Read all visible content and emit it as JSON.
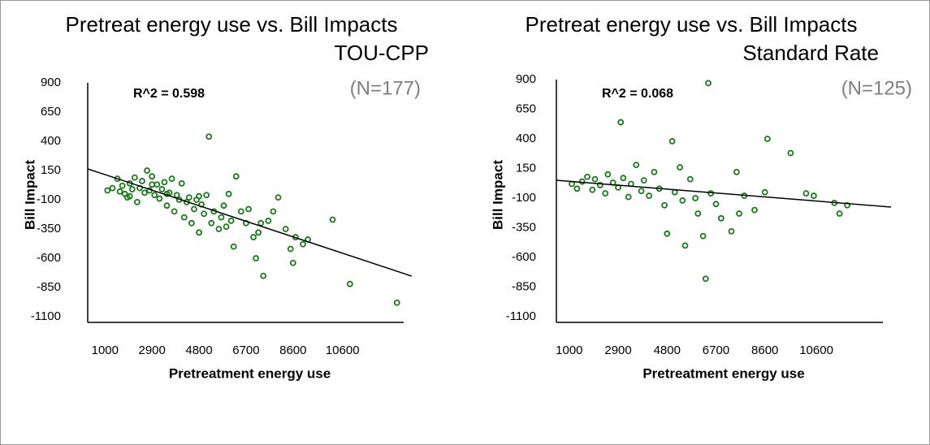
{
  "chart_data": [
    {
      "type": "scatter",
      "title": "Pretreat energy use vs. Bill Impacts",
      "subtitle": "TOU-CPP",
      "annotations": [
        "R^2 = 0.598",
        "(N=177)"
      ],
      "x_label": "Pretreatment energy use",
      "y_label": "Bill Impact",
      "color": "#1a7a1a",
      "xlim": [
        300,
        13400
      ],
      "ylim": [
        -1100,
        900
      ],
      "xticks": [
        1000,
        2900,
        4800,
        6700,
        8600,
        10600
      ],
      "yticks": [
        900,
        650,
        400,
        150,
        -100,
        -350,
        -600,
        -850,
        -1100
      ],
      "x": [
        1100,
        1300,
        1500,
        1600,
        1700,
        1800,
        1900,
        2000,
        2100,
        2200,
        2300,
        2400,
        2500,
        2600,
        2700,
        2800,
        2900,
        3000,
        3100,
        3200,
        3300,
        3400,
        3500,
        3600,
        3700,
        3800,
        3900,
        4000,
        4100,
        4200,
        4300,
        4400,
        4500,
        4600,
        4700,
        4800,
        4900,
        5000,
        5100,
        5200,
        5300,
        5400,
        5600,
        5700,
        5800,
        6000,
        6100,
        6200,
        6300,
        6500,
        6700,
        6800,
        7000,
        7100,
        7200,
        7300,
        7400,
        7600,
        7800,
        8000,
        8300,
        8500,
        8600,
        8700,
        9000,
        9200,
        10200,
        10900,
        12800,
        3500,
        2900,
        2000,
        4800,
        5900
      ],
      "values": [
        -20,
        0,
        80,
        -30,
        20,
        -50,
        -80,
        40,
        -10,
        90,
        -120,
        0,
        60,
        -40,
        150,
        -20,
        100,
        -60,
        30,
        -90,
        -10,
        50,
        -150,
        -40,
        80,
        -200,
        -60,
        -100,
        40,
        -250,
        -120,
        -80,
        -300,
        -180,
        -100,
        -380,
        -140,
        -220,
        -60,
        440,
        -300,
        -200,
        -350,
        -250,
        -150,
        -50,
        -280,
        -500,
        100,
        -200,
        -300,
        -180,
        -420,
        -600,
        -380,
        -300,
        -750,
        -280,
        -200,
        -80,
        -350,
        -520,
        -640,
        -420,
        -480,
        -440,
        -270,
        -820,
        -980,
        -50,
        30,
        -70,
        -70,
        -330
      ],
      "trendline": {
        "x": [
          300,
          13400
        ],
        "values": [
          164,
          -753
        ],
        "color": "#000000"
      }
    },
    {
      "type": "scatter",
      "title": "Pretreat energy use vs. Bill Impacts",
      "subtitle": "Standard Rate",
      "annotations": [
        "R^2 = 0.068",
        "(N=125)"
      ],
      "x_label": "Pretreatment energy use",
      "y_label": "Bill Impact",
      "color": "#1a7a1a",
      "xlim": [
        500,
        13500
      ],
      "ylim": [
        -1100,
        900
      ],
      "xticks": [
        1000,
        2900,
        4800,
        6700,
        8600,
        10600
      ],
      "yticks": [
        900,
        650,
        400,
        150,
        -100,
        -350,
        -600,
        -850,
        -1100
      ],
      "x": [
        1100,
        1300,
        1500,
        1700,
        1900,
        2000,
        2200,
        2400,
        2500,
        2700,
        2900,
        3000,
        3100,
        3300,
        3400,
        3600,
        3800,
        3900,
        4100,
        4300,
        4500,
        4700,
        4800,
        5000,
        5100,
        5300,
        5400,
        5500,
        5700,
        5900,
        6000,
        6200,
        6300,
        6400,
        6500,
        6700,
        6900,
        7300,
        7500,
        7600,
        7800,
        8200,
        8600,
        8700,
        9600,
        10200,
        10500,
        11300,
        11500,
        11800
      ],
      "values": [
        20,
        -20,
        40,
        80,
        -30,
        60,
        10,
        -60,
        100,
        30,
        -10,
        540,
        70,
        -90,
        20,
        180,
        -40,
        50,
        -80,
        120,
        -20,
        -160,
        -400,
        380,
        -50,
        160,
        -120,
        -500,
        60,
        -100,
        -230,
        -420,
        -780,
        870,
        -60,
        -150,
        -270,
        -380,
        120,
        -230,
        -80,
        -200,
        -50,
        400,
        280,
        -60,
        -80,
        -140,
        -230,
        -160
      ],
      "trendline": {
        "x": [
          500,
          13500
        ],
        "values": [
          51,
          -175
        ],
        "color": "#000000"
      }
    }
  ]
}
